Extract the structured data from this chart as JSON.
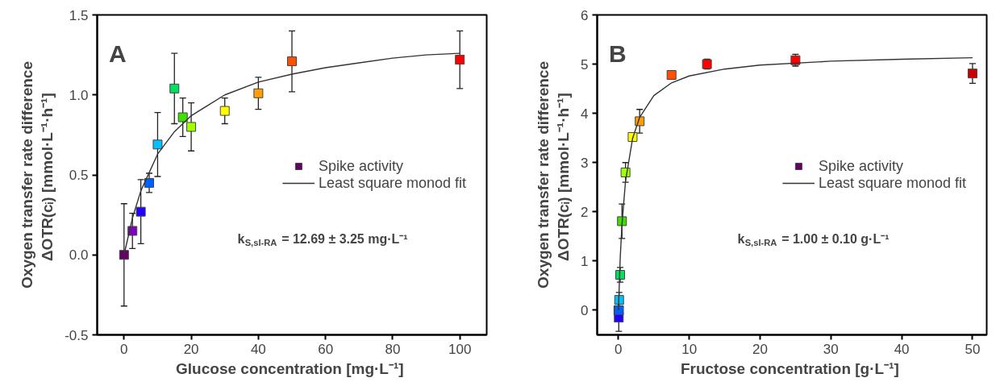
{
  "chart_data": [
    {
      "type": "scatter",
      "xlabel": "Glucose concentration  [mg·L⁻¹]",
      "ylabel": "Oxygen transfer rate difference\nΔOTR(cᵢ)  [mmol·L⁻¹·h⁻¹]",
      "xlim": [
        -8,
        108
      ],
      "ylim": [
        -0.5,
        1.5
      ],
      "xticks": [
        0,
        20,
        40,
        60,
        80,
        100
      ],
      "yticks": [
        {
          "value": -0.5,
          "label": "-0.5"
        },
        {
          "value": 0,
          "label": "0.0"
        },
        {
          "value": 0.5,
          "label": "0.5"
        },
        {
          "value": 1,
          "label": "1.0"
        },
        {
          "value": 1.5,
          "label": "1.5"
        }
      ],
      "grid": false,
      "legend": "right",
      "annotations": [
        "A",
        "k$_{S,sI-RA}$ = 12.69 ± 3.25 mg·L⁻¹"
      ],
      "series": [
        {
          "name": "Spike activity",
          "marker": "square",
          "x": [
            0,
            2.5,
            5,
            7.5,
            10,
            15,
            17.5,
            20,
            30,
            40,
            50,
            100
          ],
          "values": [
            0.0,
            0.15,
            0.27,
            0.45,
            0.69,
            1.04,
            0.86,
            0.8,
            0.9,
            1.01,
            1.21,
            1.22
          ],
          "errors": [
            0.32,
            0.11,
            0.2,
            0.06,
            0.2,
            0.22,
            0.12,
            0.15,
            0.08,
            0.1,
            0.19,
            0.18
          ],
          "colors": [
            "#660066",
            "#8000c0",
            "#2000ff",
            "#0060ff",
            "#00c0ff",
            "#00e060",
            "#40e000",
            "#a0ff00",
            "#ffff00",
            "#ffa000",
            "#ff5000",
            "#ff0000"
          ]
        },
        {
          "name": "Least square monod fit",
          "type": "line",
          "color": "#333333",
          "line_style": "solid",
          "x": [
            0,
            2.5,
            5,
            10,
            15,
            20,
            30,
            40,
            50,
            60,
            70,
            80,
            90,
            100
          ],
          "values": [
            0,
            0.23,
            0.4,
            0.63,
            0.77,
            0.87,
            1.0,
            1.08,
            1.13,
            1.17,
            1.2,
            1.23,
            1.25,
            1.26
          ]
        }
      ]
    },
    {
      "type": "scatter",
      "xlabel": "Fructose concentration  [g·L⁻¹]",
      "ylabel": "Oxygen transfer rate difference\nΔOTR(cᵢ)  [mmol·L⁻¹·h⁻¹]",
      "xlim": [
        -3,
        52
      ],
      "ylim": [
        -0.5,
        6
      ],
      "xticks": [
        0,
        10,
        20,
        30,
        40,
        50
      ],
      "yticks": [
        0,
        1,
        2,
        3,
        4,
        5,
        6
      ],
      "grid": false,
      "legend": "right",
      "annotations": [
        "B",
        "k$_{S,sI-RA}$ = 1.00 ± 0.10 g·L⁻¹"
      ],
      "series": [
        {
          "name": "Spike activity",
          "marker": "square",
          "x": [
            0,
            0.025,
            0.05,
            0.075,
            0.1,
            0.25,
            0.5,
            1,
            2,
            3,
            7.5,
            12.5,
            25,
            50
          ],
          "values": [
            0.0,
            null,
            -0.15,
            null,
            0.21,
            0.72,
            1.81,
            2.8,
            3.52,
            3.84,
            4.78,
            5.0,
            5.08,
            4.81
          ],
          "errors": [
            0.2,
            null,
            0.28,
            null,
            0.15,
            0.15,
            0.35,
            0.2,
            0.08,
            0.24,
            0.08,
            0.1,
            0.12,
            0.2
          ],
          "colors": [
            "#660066",
            "#8000c0",
            "#2000ff",
            "#0060ff",
            "#00c0ff",
            "#00e060",
            "#40e000",
            "#a0ff00",
            "#ffff00",
            "#ffa000",
            "#ff5000",
            "#ff0000",
            "#ff0000",
            "#cc0000"
          ]
        },
        {
          "name": "Least square monod fit",
          "type": "line",
          "color": "#333333",
          "line_style": "solid",
          "x": [
            0,
            0.25,
            0.5,
            1,
            2,
            3,
            5,
            7.5,
            10,
            15,
            20,
            30,
            40,
            50
          ],
          "values": [
            0,
            1.05,
            1.74,
            2.62,
            3.49,
            3.92,
            4.36,
            4.62,
            4.76,
            4.9,
            4.98,
            5.06,
            5.1,
            5.13
          ]
        }
      ]
    }
  ]
}
